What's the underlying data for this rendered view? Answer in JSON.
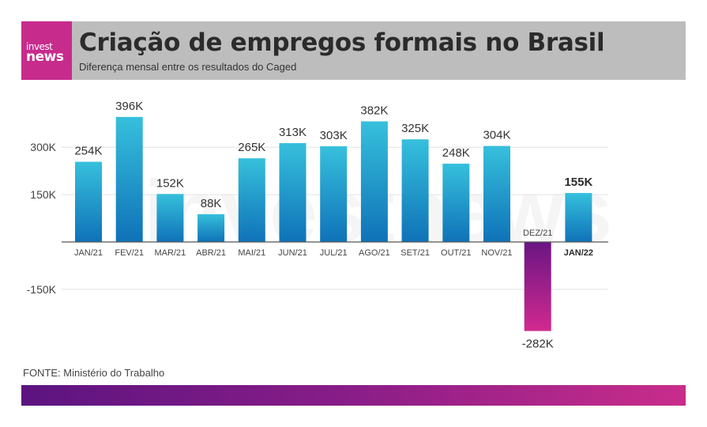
{
  "header": {
    "logo_line1": "invest",
    "logo_line2": "news",
    "title": "Criação de empregos formais no Brasil",
    "subtitle": "Diferença mensal entre os resultados do Caged"
  },
  "source": "FONTE: Ministério do Trabalho",
  "colors": {
    "header_bg": "#bdbdbd",
    "logo_bg": "#c72b8c",
    "bar_top": "#36c0dc",
    "bar_bottom": "#0f72b8",
    "neg_top": "#6a1583",
    "neg_bottom": "#d1298f"
  },
  "chart_data": {
    "type": "bar",
    "title": "Criação de empregos formais no Brasil",
    "subtitle": "Diferença mensal entre os resultados do Caged",
    "xlabel": "",
    "ylabel": "",
    "ylim": [
      -282,
      396
    ],
    "yticks": [
      300,
      150,
      -150
    ],
    "ytick_labels": [
      "300K",
      "150K",
      "-150K"
    ],
    "categories": [
      "JAN/21",
      "FEV/21",
      "MAR/21",
      "ABR/21",
      "MAI/21",
      "JUN/21",
      "JUL/21",
      "AGO/21",
      "SET/21",
      "OUT/21",
      "NOV/21",
      "DEZ/21",
      "JAN/22"
    ],
    "values": [
      254,
      396,
      152,
      88,
      265,
      313,
      303,
      382,
      325,
      248,
      304,
      -282,
      155
    ],
    "value_labels": [
      "254K",
      "396K",
      "152K",
      "88K",
      "265K",
      "313K",
      "303K",
      "382K",
      "325K",
      "248K",
      "304K",
      "-282K",
      "155K"
    ],
    "highlight": "JAN/22",
    "unit": "K",
    "grid": true,
    "watermark": "investnews"
  }
}
